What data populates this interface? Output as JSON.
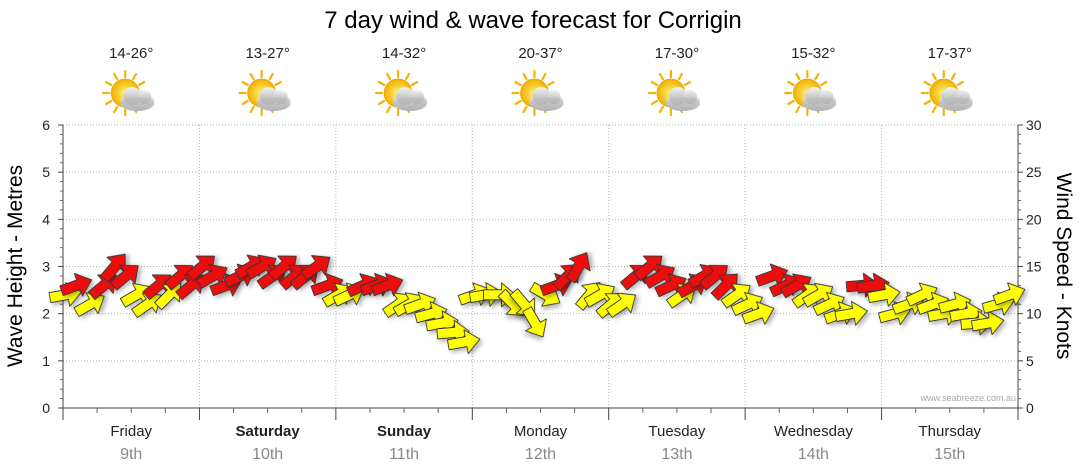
{
  "chart_data": {
    "type": "scatter",
    "title": "7 day wind & wave forecast for Corrigin",
    "ylabel_left": "Wave Height - Metres",
    "ylabel_right": "Wind Speed - Knots",
    "ylim_left": [
      0,
      6
    ],
    "ylim_right": [
      0,
      30
    ],
    "yticks_left": [
      "0",
      "1",
      "2",
      "3",
      "4",
      "5",
      "6"
    ],
    "yticks_right": [
      "0",
      "5",
      "10",
      "15",
      "20",
      "25",
      "30"
    ],
    "credit": "www.seabreeze.com.au",
    "days": [
      {
        "day": "Friday",
        "date": "9th",
        "temp": "14-26°",
        "bold": false,
        "icon": "partly-cloudy-icon"
      },
      {
        "day": "Saturday",
        "date": "10th",
        "temp": "13-27°",
        "bold": true,
        "icon": "partly-cloudy-icon"
      },
      {
        "day": "Sunday",
        "date": "11th",
        "temp": "14-32°",
        "bold": true,
        "icon": "partly-cloudy-icon"
      },
      {
        "day": "Monday",
        "date": "12th",
        "temp": "20-37°",
        "bold": false,
        "icon": "partly-cloudy-icon"
      },
      {
        "day": "Tuesday",
        "date": "13th",
        "temp": "17-30°",
        "bold": false,
        "icon": "partly-cloudy-icon"
      },
      {
        "day": "Wednesday",
        "date": "14th",
        "temp": "15-32°",
        "bold": false,
        "icon": "partly-cloudy-icon"
      },
      {
        "day": "Thursday",
        "date": "15th",
        "temp": "17-37°",
        "bold": false,
        "icon": "partly-cloudy-icon"
      }
    ],
    "series": [
      {
        "name": "Wind",
        "unit": "knots",
        "x": [
          0.02,
          0.1,
          0.2,
          0.3,
          0.38,
          0.46,
          0.54,
          0.62,
          0.7,
          0.78,
          0.86,
          0.94,
          1.02,
          1.1,
          1.2,
          1.3,
          1.38,
          1.46,
          1.54,
          1.62,
          1.7,
          1.78,
          1.86,
          1.94,
          2.02,
          2.1,
          2.2,
          2.3,
          2.38,
          2.46,
          2.54,
          2.62,
          2.7,
          2.78,
          2.86,
          2.94,
          3.02,
          3.1,
          3.2,
          3.3,
          3.38,
          3.46,
          3.54,
          3.62,
          3.7,
          3.78,
          3.86,
          3.94,
          4.02,
          4.1,
          4.2,
          4.3,
          4.38,
          4.46,
          4.54,
          4.62,
          4.7,
          4.78,
          4.86,
          4.94,
          5.02,
          5.1,
          5.2,
          5.3,
          5.38,
          5.46,
          5.54,
          5.62,
          5.7,
          5.78,
          5.86,
          5.94,
          6.02,
          6.1,
          6.2,
          6.3,
          6.38,
          6.46,
          6.54,
          6.62,
          6.7,
          6.78,
          6.86,
          6.94
        ],
        "values": [
          12,
          13,
          11,
          13,
          15,
          14,
          12,
          11,
          13,
          12,
          14,
          13,
          15,
          14,
          13,
          14,
          15,
          15,
          14,
          15,
          14,
          14,
          15,
          13,
          12,
          12,
          13,
          13,
          13,
          11,
          11,
          11,
          10,
          9,
          8,
          7,
          12,
          12,
          12,
          11,
          11,
          9,
          12,
          13,
          14,
          15,
          12,
          12,
          11,
          11,
          14,
          15,
          14,
          13,
          12,
          13,
          14,
          14,
          13,
          12,
          11,
          10,
          14,
          13,
          13,
          12,
          12,
          11,
          10,
          10,
          13,
          13,
          12,
          10,
          11,
          12,
          11,
          10,
          11,
          10,
          9,
          9,
          11,
          12
        ],
        "direction_deg": [
          260,
          250,
          240,
          230,
          220,
          230,
          240,
          235,
          230,
          225,
          230,
          230,
          230,
          240,
          250,
          245,
          240,
          240,
          235,
          230,
          230,
          230,
          235,
          250,
          240,
          245,
          245,
          250,
          250,
          235,
          240,
          250,
          255,
          260,
          265,
          260,
          250,
          260,
          270,
          315,
          320,
          330,
          300,
          250,
          225,
          210,
          220,
          240,
          230,
          235,
          230,
          230,
          240,
          245,
          235,
          240,
          240,
          230,
          225,
          235,
          245,
          250,
          250,
          245,
          240,
          235,
          240,
          245,
          250,
          260,
          265,
          260,
          260,
          255,
          250,
          245,
          250,
          260,
          255,
          260,
          265,
          260,
          255,
          250
        ],
        "color_hint": "yellow up to 12.5 knots, red above"
      }
    ],
    "legend": "none",
    "grid": true
  }
}
